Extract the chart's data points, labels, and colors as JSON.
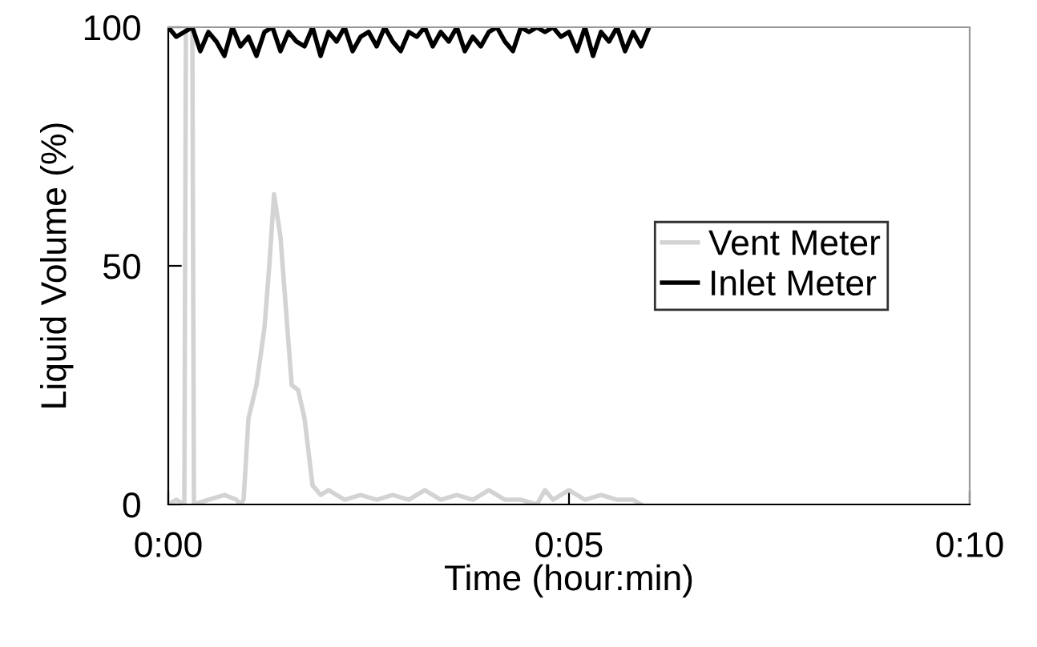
{
  "chart_data": {
    "type": "line",
    "xlabel": "Time (hour:min)",
    "ylabel": "Liquid Volume (%)",
    "xlim": [
      0,
      10
    ],
    "xticks": [
      {
        "value": 0,
        "label": "0:00"
      },
      {
        "value": 5,
        "label": "0:05"
      },
      {
        "value": 10,
        "label": "0:10"
      }
    ],
    "ylim": [
      0,
      100
    ],
    "yticks": [
      0,
      50,
      100
    ],
    "grid": false,
    "legend": "right",
    "marker": "none",
    "line_style": "solid",
    "series": [
      {
        "name": "Vent Meter",
        "color": "#d3d3d3",
        "x": [
          0,
          0.1,
          0.2,
          0.22,
          0.3,
          0.32,
          0.5,
          0.7,
          0.85,
          0.9,
          0.94,
          1.0,
          1.1,
          1.2,
          1.26,
          1.32,
          1.4,
          1.54,
          1.62,
          1.7,
          1.8,
          1.9,
          2.0,
          2.2,
          2.4,
          2.6,
          2.8,
          3.0,
          3.2,
          3.4,
          3.6,
          3.8,
          4.0,
          4.2,
          4.4,
          4.6,
          4.7,
          4.8,
          4.9,
          5.0,
          5.2,
          5.4,
          5.6,
          5.8,
          5.9
        ],
        "values": [
          0,
          1,
          0,
          100,
          100,
          0,
          1,
          2,
          1,
          0,
          1,
          18,
          25,
          37,
          50,
          65,
          56,
          25,
          24,
          18,
          4,
          2,
          3,
          1,
          2,
          1,
          2,
          1,
          3,
          1,
          2,
          1,
          3,
          1,
          1,
          0,
          3,
          1,
          2,
          3,
          1,
          2,
          1,
          1,
          0
        ]
      },
      {
        "name": "Inlet Meter",
        "color": "#000000",
        "x": [
          0,
          0.1,
          0.2,
          0.3,
          0.4,
          0.5,
          0.6,
          0.7,
          0.8,
          0.9,
          1.0,
          1.1,
          1.2,
          1.3,
          1.4,
          1.5,
          1.6,
          1.7,
          1.8,
          1.9,
          2.0,
          2.1,
          2.2,
          2.3,
          2.4,
          2.5,
          2.6,
          2.7,
          2.8,
          2.9,
          3.0,
          3.1,
          3.2,
          3.3,
          3.4,
          3.5,
          3.6,
          3.7,
          3.8,
          3.9,
          4.0,
          4.1,
          4.2,
          4.3,
          4.4,
          4.5,
          4.6,
          4.7,
          4.8,
          4.9,
          5.0,
          5.1,
          5.2,
          5.3,
          5.4,
          5.5,
          5.6,
          5.7,
          5.8,
          5.9,
          6.0
        ],
        "values": [
          100,
          98,
          99,
          100,
          95,
          99,
          97,
          94,
          100,
          96,
          98,
          94,
          99,
          100,
          95,
          99,
          97,
          96,
          100,
          94,
          99,
          97,
          100,
          95,
          98,
          99,
          96,
          100,
          97,
          95,
          99,
          98,
          100,
          96,
          99,
          97,
          100,
          95,
          98,
          96,
          99,
          100,
          97,
          95,
          100,
          99,
          100,
          99,
          100,
          98,
          99,
          95,
          100,
          94,
          99,
          97,
          100,
          95,
          99,
          96,
          100
        ]
      }
    ]
  }
}
